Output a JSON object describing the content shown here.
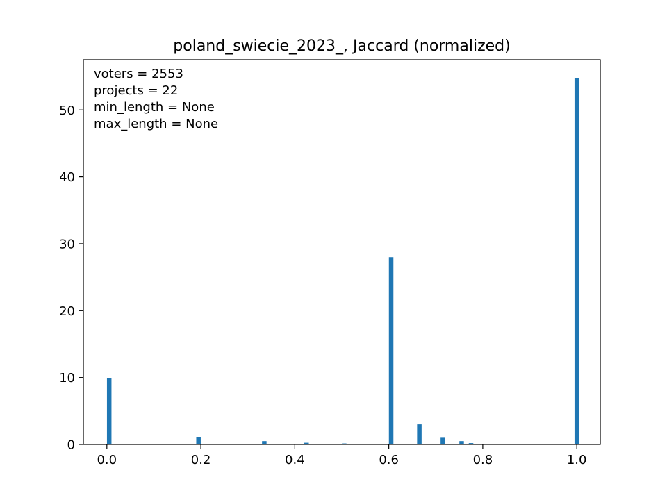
{
  "chart_data": {
    "type": "bar",
    "title": "poland_swiecie_2023_, Jaccard (normalized)",
    "xlabel": "",
    "ylabel": "",
    "xlim": [
      -0.05,
      1.05
    ],
    "ylim": [
      0,
      57.5
    ],
    "grid": false,
    "bar_color": "#1f77b4",
    "x_ticks": [
      0.0,
      0.2,
      0.4,
      0.6,
      0.8,
      1.0
    ],
    "x_tick_labels": [
      "0.0",
      "0.2",
      "0.4",
      "0.6",
      "0.8",
      "1.0"
    ],
    "y_ticks": [
      0,
      10,
      20,
      30,
      40,
      50
    ],
    "y_tick_labels": [
      "0",
      "10",
      "20",
      "30",
      "40",
      "50"
    ],
    "annotations": [
      "voters = 2553",
      "projects = 22",
      "min_length = None",
      "max_length = None"
    ],
    "bars": [
      {
        "x": 0.005,
        "value": 9.9
      },
      {
        "x": 0.145,
        "value": 0.06
      },
      {
        "x": 0.195,
        "value": 1.1
      },
      {
        "x": 0.335,
        "value": 0.5
      },
      {
        "x": 0.425,
        "value": 0.25
      },
      {
        "x": 0.505,
        "value": 0.15
      },
      {
        "x": 0.555,
        "value": 0.05
      },
      {
        "x": 0.605,
        "value": 28.0
      },
      {
        "x": 0.665,
        "value": 3.0
      },
      {
        "x": 0.715,
        "value": 1.0
      },
      {
        "x": 0.755,
        "value": 0.5
      },
      {
        "x": 0.775,
        "value": 0.2
      },
      {
        "x": 0.805,
        "value": 0.1
      },
      {
        "x": 0.835,
        "value": 0.05
      },
      {
        "x": 1.0,
        "value": 54.7
      }
    ]
  }
}
